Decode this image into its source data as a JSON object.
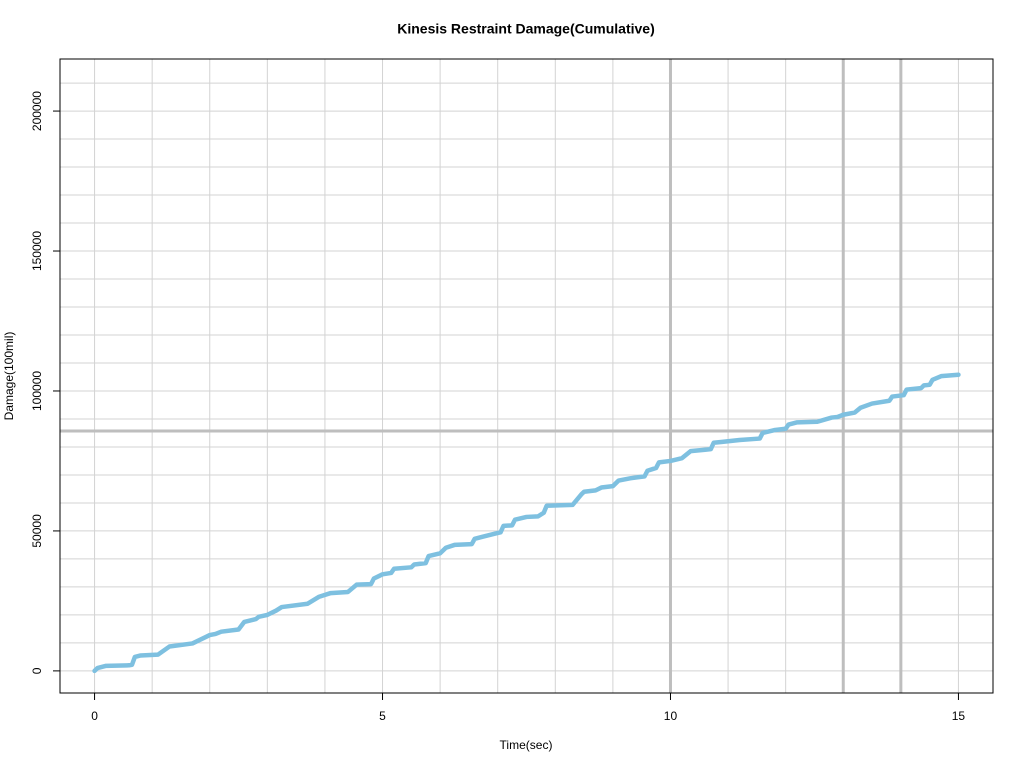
{
  "chart_data": {
    "type": "line",
    "title": "Kinesis Restraint Damage(Cumulative)",
    "x_label": "Time(sec)",
    "y_label": "Damage(100mil)",
    "xlim": [
      -0.6,
      15.6
    ],
    "ylim": [
      -7900,
      218600
    ],
    "xticks": [
      0,
      5,
      10,
      15
    ],
    "yticks": [
      0,
      50000,
      100000,
      150000,
      200000
    ],
    "grid": true,
    "xgrid": [
      0,
      1,
      2,
      3,
      4,
      5,
      6,
      7,
      8,
      9,
      10,
      11,
      12,
      13,
      14,
      15
    ],
    "ygrid": [
      0,
      10000,
      20000,
      30000,
      40000,
      50000,
      60000,
      70000,
      80000,
      90000,
      100000,
      110000,
      120000,
      130000,
      140000,
      150000,
      160000,
      170000,
      180000,
      190000,
      200000,
      210000
    ],
    "vlines": [
      10,
      13,
      14
    ],
    "hlines": [
      85700
    ],
    "series": [
      {
        "name": "Damage",
        "color": "#7ec0e0",
        "x": [
          0,
          0.05,
          0.2,
          0.6,
          0.65,
          0.7,
          0.8,
          1.1,
          1.3,
          1.7,
          2.0,
          2.1,
          2.2,
          2.5,
          2.6,
          2.8,
          2.85,
          3.0,
          3.15,
          3.25,
          3.7,
          3.9,
          4.1,
          4.4,
          4.55,
          4.8,
          4.85,
          5.0,
          5.15,
          5.2,
          5.5,
          5.55,
          5.75,
          5.8,
          6.0,
          6.1,
          6.25,
          6.55,
          6.6,
          6.75,
          6.95,
          7.05,
          7.1,
          7.25,
          7.3,
          7.5,
          7.7,
          7.8,
          7.85,
          8.3,
          8.45,
          8.5,
          8.7,
          8.8,
          9.0,
          9.1,
          9.3,
          9.55,
          9.6,
          9.75,
          9.8,
          10.0,
          10.2,
          10.35,
          10.6,
          10.7,
          10.75,
          10.9,
          11.2,
          11.55,
          11.6,
          11.8,
          12.0,
          12.05,
          12.2,
          12.55,
          12.8,
          12.9,
          13.0,
          13.2,
          13.3,
          13.5,
          13.8,
          13.85,
          14.05,
          14.1,
          14.35,
          14.4,
          14.5,
          14.55,
          14.7,
          15.0
        ],
        "values": [
          0,
          1000,
          1800,
          2000,
          2200,
          5000,
          5500,
          5800,
          8700,
          9800,
          12800,
          13200,
          14000,
          14800,
          17500,
          18500,
          19300,
          20000,
          21500,
          22800,
          24000,
          26500,
          27800,
          28200,
          30800,
          31000,
          33000,
          34500,
          35000,
          36500,
          37000,
          38000,
          38500,
          41000,
          42000,
          44000,
          45000,
          45300,
          47200,
          48000,
          49000,
          49500,
          51800,
          52000,
          54000,
          55000,
          55200,
          56500,
          59000,
          59300,
          63000,
          64000,
          64500,
          65500,
          66000,
          68000,
          68800,
          69500,
          71500,
          72500,
          74500,
          75000,
          76000,
          78500,
          79000,
          79200,
          81500,
          81800,
          82500,
          83000,
          85000,
          86000,
          86500,
          88000,
          88800,
          89000,
          90500,
          90700,
          91500,
          92300,
          94000,
          95500,
          96500,
          98000,
          98500,
          100500,
          101000,
          102000,
          102200,
          104000,
          105300,
          105800
        ]
      }
    ]
  }
}
